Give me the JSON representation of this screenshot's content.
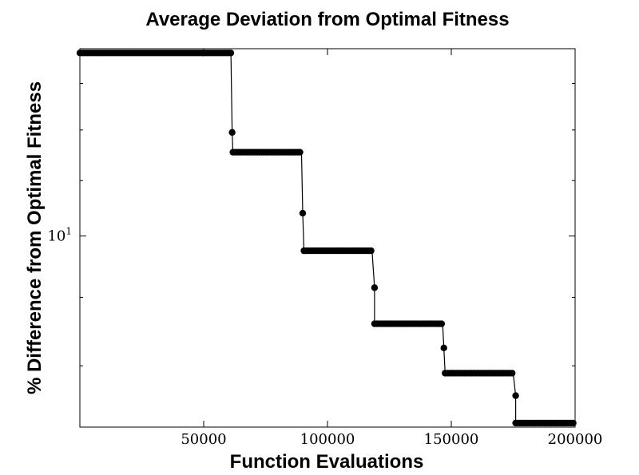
{
  "chart_data": {
    "type": "line",
    "title": "Average Deviation from Optimal Fitness",
    "xlabel": "Function Evaluations",
    "ylabel": "% Difference from Optimal Fitness",
    "xlim": [
      0,
      200000
    ],
    "ylim": [
      7.2,
      13.8
    ],
    "y_scale": "log",
    "grid": false,
    "legend": "none",
    "line_color": "#000000",
    "x_ticks": [
      {
        "value": 50000,
        "label": "50000"
      },
      {
        "value": 100000,
        "label": "100000"
      },
      {
        "value": 150000,
        "label": "150000"
      },
      {
        "value": 200000,
        "label": "200000"
      }
    ],
    "y_major_ticks": [
      {
        "value": 10,
        "base": "10",
        "exponent": "1"
      }
    ],
    "y_minor_ticks": [
      8,
      9,
      11,
      12,
      13
    ],
    "levels": [
      {
        "x_start": 0,
        "x_end": 61000,
        "y": 13.7
      },
      {
        "x_start": 61800,
        "x_end": 89500,
        "y": 11.55
      },
      {
        "x_start": 90500,
        "x_end": 118000,
        "y": 9.75
      },
      {
        "x_start": 119000,
        "x_end": 146500,
        "y": 8.6
      },
      {
        "x_start": 147500,
        "x_end": 175000,
        "y": 7.9
      },
      {
        "x_start": 176000,
        "x_end": 200000,
        "y": 7.25
      }
    ],
    "transition_points": [
      {
        "x": 61500,
        "y": 11.95
      },
      {
        "x": 90000,
        "y": 10.4
      },
      {
        "x": 119000,
        "y": 9.15
      },
      {
        "x": 147000,
        "y": 8.25
      },
      {
        "x": 176000,
        "y": 7.6
      }
    ]
  }
}
